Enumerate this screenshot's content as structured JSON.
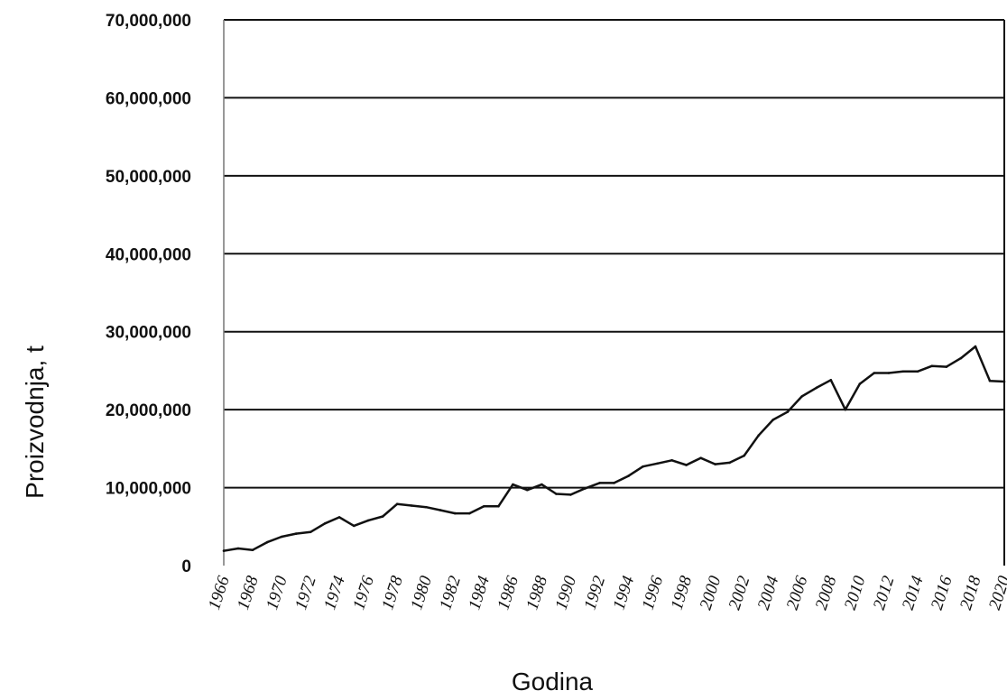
{
  "chart_data": {
    "type": "line",
    "title": "",
    "xlabel": "Godina",
    "ylabel": "Proizvodnja, t",
    "xlim": [
      1966,
      2020
    ],
    "ylim": [
      0,
      70000000
    ],
    "grid": true,
    "y_ticks": [
      "0",
      "10,000,000",
      "20,000,000",
      "30,000,000",
      "40,000,000",
      "50,000,000",
      "60,000,000",
      "70,000,000"
    ],
    "x_ticks": [
      "1966",
      "1968",
      "1970",
      "1972",
      "1974",
      "1976",
      "1978",
      "1980",
      "1982",
      "1984",
      "1986",
      "1988",
      "1990",
      "1992",
      "1994",
      "1996",
      "1998",
      "2000",
      "2002",
      "2004",
      "2006",
      "2008",
      "2010",
      "2012",
      "2014",
      "2016",
      "2018",
      "2020"
    ],
    "series": [
      {
        "name": "",
        "x": [
          1966,
          1967,
          1968,
          1969,
          1970,
          1971,
          1972,
          1973,
          1974,
          1975,
          1976,
          1977,
          1978,
          1979,
          1980,
          1981,
          1982,
          1983,
          1984,
          1985,
          1986,
          1987,
          1988,
          1989,
          1990,
          1991,
          1992,
          1993,
          1994,
          1995,
          1996,
          1997,
          1998,
          1999,
          2000,
          2001,
          2002,
          2003,
          2004,
          2005,
          2006,
          2007,
          2008,
          2009,
          2010,
          2011,
          2012,
          2013,
          2014,
          2015,
          2016,
          2017,
          2018,
          2019,
          2020
        ],
        "y": [
          1900000,
          2200000,
          2000000,
          3000000,
          3700000,
          4100000,
          4300000,
          5400000,
          6200000,
          5100000,
          5800000,
          6300000,
          7900000,
          7700000,
          7500000,
          7100000,
          6700000,
          6700000,
          7600000,
          7600000,
          10400000,
          9700000,
          10400000,
          9200000,
          9100000,
          9900000,
          10600000,
          10600000,
          11500000,
          12700000,
          13100000,
          13500000,
          12900000,
          13800000,
          13000000,
          13200000,
          14100000,
          16700000,
          18700000,
          19700000,
          21700000,
          22800000,
          23800000,
          20000000,
          23300000,
          24700000,
          24700000,
          24900000,
          24900000,
          25600000,
          25500000,
          26600000,
          28100000,
          23700000,
          23600000
        ]
      }
    ]
  }
}
